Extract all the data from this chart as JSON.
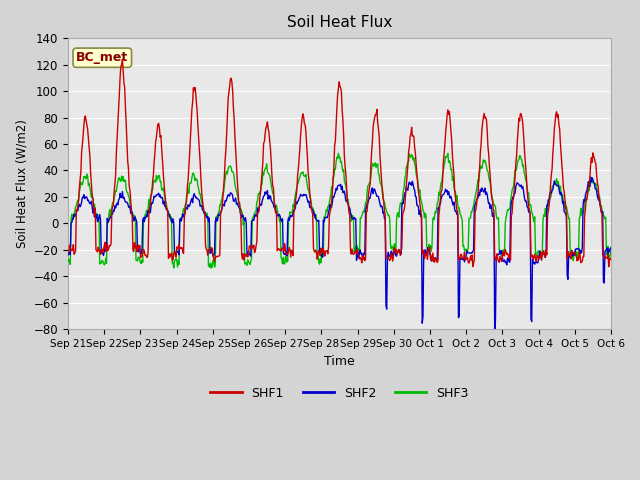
{
  "title": "Soil Heat Flux",
  "ylabel": "Soil Heat Flux (W/m2)",
  "xlabel": "Time",
  "ylim": [
    -80,
    140
  ],
  "yticks": [
    -80,
    -60,
    -40,
    -20,
    0,
    20,
    40,
    60,
    80,
    100,
    120,
    140
  ],
  "colors": {
    "SHF1": "#cc0000",
    "SHF2": "#0000cc",
    "SHF3": "#00bb00"
  },
  "legend_label": "BC_met",
  "fig_facecolor": "#d4d4d4",
  "ax_facecolor": "#e8e8e8",
  "n_days": 15,
  "line_width": 1.0,
  "figsize": [
    6.4,
    4.8
  ],
  "dpi": 100
}
